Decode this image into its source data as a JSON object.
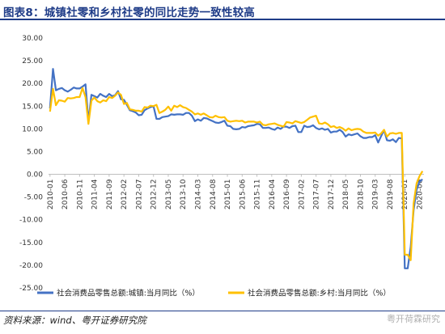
{
  "title": "图表8：城镇社零和乡村社零的同比走势一致性较高",
  "source": "资料来源：wind、粤开证券研究院",
  "watermark": "粤开荷霖研究",
  "colors": {
    "urban": "#4472C4",
    "rural": "#FFC000",
    "title": "#1f3c88"
  },
  "chart_data": {
    "type": "line",
    "xlabel": "",
    "ylabel": "",
    "ylim": [
      -25,
      30
    ],
    "yticks": [
      -25,
      -20,
      -15,
      -10,
      -5,
      0,
      5,
      10,
      15,
      20,
      25,
      30
    ],
    "ytick_labels": [
      "-25.00",
      "-20.00",
      "-15.00",
      "-10.00",
      "-5.00",
      "0.00",
      "5.00",
      "10.00",
      "15.00",
      "20.00",
      "25.00",
      "30.00"
    ],
    "xtick_labels": [
      "2010-01",
      "2010-06",
      "2010-11",
      "2011-04",
      "2011-09",
      "2012-02",
      "2012-07",
      "2012-12",
      "2013-05",
      "2013-10",
      "2014-03",
      "2014-08",
      "2015-01",
      "2015-06",
      "2015-11",
      "2016-04",
      "2016-09",
      "2017-02",
      "2017-07",
      "2017-12",
      "2018-05",
      "2018-10",
      "2019-03",
      "2019-08",
      "2020-01",
      "2020-06"
    ],
    "x_start": "2010-01",
    "x_end": "2020-07",
    "legend_position": "bottom",
    "series": [
      {
        "name": "社会消费品零售总额:城镇:当月同比（%）",
        "color": "#4472C4",
        "points": [
          [
            "2010-01",
            14.5
          ],
          [
            "2010-02",
            23.2
          ],
          [
            "2010-03",
            18.5
          ],
          [
            "2010-04",
            18.8
          ],
          [
            "2010-05",
            19.0
          ],
          [
            "2010-06",
            18.5
          ],
          [
            "2010-07",
            18.2
          ],
          [
            "2010-08",
            18.6
          ],
          [
            "2010-09",
            19.1
          ],
          [
            "2010-10",
            18.9
          ],
          [
            "2010-11",
            18.9
          ],
          [
            "2010-12",
            19.3
          ],
          [
            "2011-01",
            19.8
          ],
          [
            "2011-02",
            11.6
          ],
          [
            "2011-03",
            17.5
          ],
          [
            "2011-04",
            17.2
          ],
          [
            "2011-05",
            16.9
          ],
          [
            "2011-06",
            17.7
          ],
          [
            "2011-07",
            17.3
          ],
          [
            "2011-08",
            17.0
          ],
          [
            "2011-09",
            17.7
          ],
          [
            "2011-10",
            17.2
          ],
          [
            "2011-11",
            17.4
          ],
          [
            "2011-12",
            18.3
          ],
          [
            "2012-01",
            16.5
          ],
          [
            "2012-02",
            16.4
          ],
          [
            "2012-03",
            15.3
          ],
          [
            "2012-04",
            14.1
          ],
          [
            "2012-05",
            13.9
          ],
          [
            "2012-06",
            13.6
          ],
          [
            "2012-07",
            13.0
          ],
          [
            "2012-08",
            13.1
          ],
          [
            "2012-09",
            14.1
          ],
          [
            "2012-10",
            14.5
          ],
          [
            "2012-11",
            14.8
          ],
          [
            "2012-12",
            15.0
          ],
          [
            "2013-01",
            12.2
          ],
          [
            "2013-02",
            12.2
          ],
          [
            "2013-03",
            12.6
          ],
          [
            "2013-04",
            12.7
          ],
          [
            "2013-05",
            12.8
          ],
          [
            "2013-06",
            13.2
          ],
          [
            "2013-07",
            13.1
          ],
          [
            "2013-08",
            13.2
          ],
          [
            "2013-09",
            13.2
          ],
          [
            "2013-10",
            13.1
          ],
          [
            "2013-11",
            13.5
          ],
          [
            "2013-12",
            13.5
          ],
          [
            "2014-01",
            12.9
          ],
          [
            "2014-02",
            11.7
          ],
          [
            "2014-03",
            12.1
          ],
          [
            "2014-04",
            11.8
          ],
          [
            "2014-05",
            12.4
          ],
          [
            "2014-06",
            12.3
          ],
          [
            "2014-07",
            12.0
          ],
          [
            "2014-08",
            11.7
          ],
          [
            "2014-09",
            11.4
          ],
          [
            "2014-10",
            11.3
          ],
          [
            "2014-11",
            11.5
          ],
          [
            "2014-12",
            11.8
          ],
          [
            "2015-01",
            10.7
          ],
          [
            "2015-02",
            10.6
          ],
          [
            "2015-03",
            10.0
          ],
          [
            "2015-04",
            9.9
          ],
          [
            "2015-05",
            10.0
          ],
          [
            "2015-06",
            10.4
          ],
          [
            "2015-07",
            10.3
          ],
          [
            "2015-08",
            10.6
          ],
          [
            "2015-09",
            10.7
          ],
          [
            "2015-10",
            10.8
          ],
          [
            "2015-11",
            11.1
          ],
          [
            "2015-12",
            11.0
          ],
          [
            "2016-01",
            10.2
          ],
          [
            "2016-02",
            10.2
          ],
          [
            "2016-03",
            10.3
          ],
          [
            "2016-04",
            10.0
          ],
          [
            "2016-05",
            9.8
          ],
          [
            "2016-06",
            10.3
          ],
          [
            "2016-07",
            10.0
          ],
          [
            "2016-08",
            10.5
          ],
          [
            "2016-09",
            10.5
          ],
          [
            "2016-10",
            10.2
          ],
          [
            "2016-11",
            10.6
          ],
          [
            "2016-12",
            10.7
          ],
          [
            "2017-01",
            9.3
          ],
          [
            "2017-02",
            9.3
          ],
          [
            "2017-03",
            10.7
          ],
          [
            "2017-04",
            10.4
          ],
          [
            "2017-05",
            10.5
          ],
          [
            "2017-06",
            10.8
          ],
          [
            "2017-07",
            10.2
          ],
          [
            "2017-08",
            9.9
          ],
          [
            "2017-09",
            10.1
          ],
          [
            "2017-10",
            9.8
          ],
          [
            "2017-11",
            10.0
          ],
          [
            "2017-12",
            9.2
          ],
          [
            "2018-01",
            9.4
          ],
          [
            "2018-02",
            9.4
          ],
          [
            "2018-03",
            9.8
          ],
          [
            "2018-04",
            9.3
          ],
          [
            "2018-05",
            8.3
          ],
          [
            "2018-06",
            8.8
          ],
          [
            "2018-07",
            8.6
          ],
          [
            "2018-08",
            8.8
          ],
          [
            "2018-09",
            9.0
          ],
          [
            "2018-10",
            8.4
          ],
          [
            "2018-11",
            8.0
          ],
          [
            "2018-12",
            8.0
          ],
          [
            "2019-01",
            8.2
          ],
          [
            "2019-02",
            8.2
          ],
          [
            "2019-03",
            8.6
          ],
          [
            "2019-04",
            7.0
          ],
          [
            "2019-05",
            8.4
          ],
          [
            "2019-06",
            9.7
          ],
          [
            "2019-07",
            7.5
          ],
          [
            "2019-08",
            7.4
          ],
          [
            "2019-09",
            7.7
          ],
          [
            "2019-10",
            7.1
          ],
          [
            "2019-11",
            8.0
          ],
          [
            "2019-12",
            7.9
          ],
          [
            "2020-01",
            -20.7
          ],
          [
            "2020-02",
            -20.7
          ],
          [
            "2020-03",
            -16.0
          ],
          [
            "2020-04",
            -7.9
          ],
          [
            "2020-05",
            -3.4
          ],
          [
            "2020-06",
            -1.6
          ],
          [
            "2020-07",
            -1.1
          ]
        ]
      },
      {
        "name": "社会消费品零售总额:乡村:当月同比（%）",
        "color": "#FFC000",
        "points": [
          [
            "2010-01",
            13.8
          ],
          [
            "2010-02",
            18.8
          ],
          [
            "2010-03",
            15.2
          ],
          [
            "2010-04",
            16.3
          ],
          [
            "2010-05",
            16.2
          ],
          [
            "2010-06",
            16.0
          ],
          [
            "2010-07",
            16.8
          ],
          [
            "2010-08",
            16.7
          ],
          [
            "2010-09",
            16.8
          ],
          [
            "2010-10",
            17.0
          ],
          [
            "2010-11",
            17.0
          ],
          [
            "2010-12",
            19.0
          ],
          [
            "2011-01",
            17.0
          ],
          [
            "2011-02",
            11.1
          ],
          [
            "2011-03",
            16.2
          ],
          [
            "2011-04",
            16.9
          ],
          [
            "2011-05",
            16.1
          ],
          [
            "2011-06",
            15.8
          ],
          [
            "2011-07",
            16.3
          ],
          [
            "2011-08",
            16.1
          ],
          [
            "2011-09",
            17.0
          ],
          [
            "2011-10",
            16.8
          ],
          [
            "2011-11",
            17.3
          ],
          [
            "2011-12",
            18.0
          ],
          [
            "2012-01",
            17.5
          ],
          [
            "2012-02",
            15.5
          ],
          [
            "2012-03",
            15.7
          ],
          [
            "2012-04",
            14.3
          ],
          [
            "2012-05",
            14.2
          ],
          [
            "2012-06",
            14.0
          ],
          [
            "2012-07",
            14.0
          ],
          [
            "2012-08",
            13.8
          ],
          [
            "2012-09",
            14.8
          ],
          [
            "2012-10",
            14.7
          ],
          [
            "2012-11",
            15.1
          ],
          [
            "2012-12",
            15.0
          ],
          [
            "2013-01",
            15.3
          ],
          [
            "2013-02",
            13.5
          ],
          [
            "2013-03",
            13.8
          ],
          [
            "2013-04",
            14.2
          ],
          [
            "2013-05",
            14.9
          ],
          [
            "2013-06",
            14.0
          ],
          [
            "2013-07",
            15.1
          ],
          [
            "2013-08",
            14.8
          ],
          [
            "2013-09",
            15.2
          ],
          [
            "2013-10",
            14.8
          ],
          [
            "2013-11",
            14.6
          ],
          [
            "2013-12",
            14.2
          ],
          [
            "2014-01",
            13.8
          ],
          [
            "2014-02",
            13.2
          ],
          [
            "2014-03",
            13.4
          ],
          [
            "2014-04",
            13.1
          ],
          [
            "2014-05",
            13.4
          ],
          [
            "2014-06",
            13.0
          ],
          [
            "2014-07",
            12.6
          ],
          [
            "2014-08",
            12.5
          ],
          [
            "2014-09",
            12.9
          ],
          [
            "2014-10",
            12.6
          ],
          [
            "2014-11",
            12.5
          ],
          [
            "2014-12",
            12.6
          ],
          [
            "2015-01",
            11.8
          ],
          [
            "2015-02",
            11.6
          ],
          [
            "2015-03",
            11.7
          ],
          [
            "2015-04",
            11.8
          ],
          [
            "2015-05",
            11.7
          ],
          [
            "2015-06",
            11.8
          ],
          [
            "2015-07",
            11.4
          ],
          [
            "2015-08",
            11.6
          ],
          [
            "2015-09",
            11.6
          ],
          [
            "2015-10",
            11.6
          ],
          [
            "2015-11",
            11.4
          ],
          [
            "2015-12",
            11.6
          ],
          [
            "2016-01",
            10.9
          ],
          [
            "2016-02",
            10.8
          ],
          [
            "2016-03",
            11.0
          ],
          [
            "2016-04",
            11.1
          ],
          [
            "2016-05",
            11.2
          ],
          [
            "2016-06",
            10.9
          ],
          [
            "2016-07",
            10.7
          ],
          [
            "2016-08",
            10.5
          ],
          [
            "2016-09",
            11.5
          ],
          [
            "2016-10",
            11.4
          ],
          [
            "2016-11",
            11.2
          ],
          [
            "2016-12",
            11.7
          ],
          [
            "2017-01",
            11.5
          ],
          [
            "2017-02",
            11.3
          ],
          [
            "2017-03",
            11.5
          ],
          [
            "2017-04",
            12.0
          ],
          [
            "2017-05",
            12.5
          ],
          [
            "2017-06",
            12.7
          ],
          [
            "2017-07",
            12.9
          ],
          [
            "2017-08",
            11.2
          ],
          [
            "2017-09",
            11.1
          ],
          [
            "2017-10",
            11.4
          ],
          [
            "2017-11",
            11.0
          ],
          [
            "2017-12",
            10.4
          ],
          [
            "2018-01",
            10.6
          ],
          [
            "2018-02",
            10.2
          ],
          [
            "2018-03",
            10.4
          ],
          [
            "2018-04",
            10.1
          ],
          [
            "2018-05",
            9.6
          ],
          [
            "2018-06",
            10.1
          ],
          [
            "2018-07",
            9.7
          ],
          [
            "2018-08",
            9.9
          ],
          [
            "2018-09",
            10.0
          ],
          [
            "2018-10",
            9.9
          ],
          [
            "2018-11",
            9.4
          ],
          [
            "2018-12",
            9.1
          ],
          [
            "2019-01",
            9.1
          ],
          [
            "2019-02",
            9.1
          ],
          [
            "2019-03",
            9.2
          ],
          [
            "2019-04",
            8.5
          ],
          [
            "2019-05",
            9.0
          ],
          [
            "2019-06",
            9.8
          ],
          [
            "2019-07",
            8.3
          ],
          [
            "2019-08",
            9.0
          ],
          [
            "2019-09",
            9.1
          ],
          [
            "2019-10",
            8.9
          ],
          [
            "2019-11",
            9.1
          ],
          [
            "2019-12",
            9.1
          ],
          [
            "2020-01",
            -17.7
          ],
          [
            "2020-02",
            -17.7
          ],
          [
            "2020-03",
            -18.9
          ],
          [
            "2020-04",
            -6.4
          ],
          [
            "2020-05",
            -2.0
          ],
          [
            "2020-06",
            -0.4
          ],
          [
            "2020-07",
            0.7
          ]
        ]
      }
    ]
  }
}
